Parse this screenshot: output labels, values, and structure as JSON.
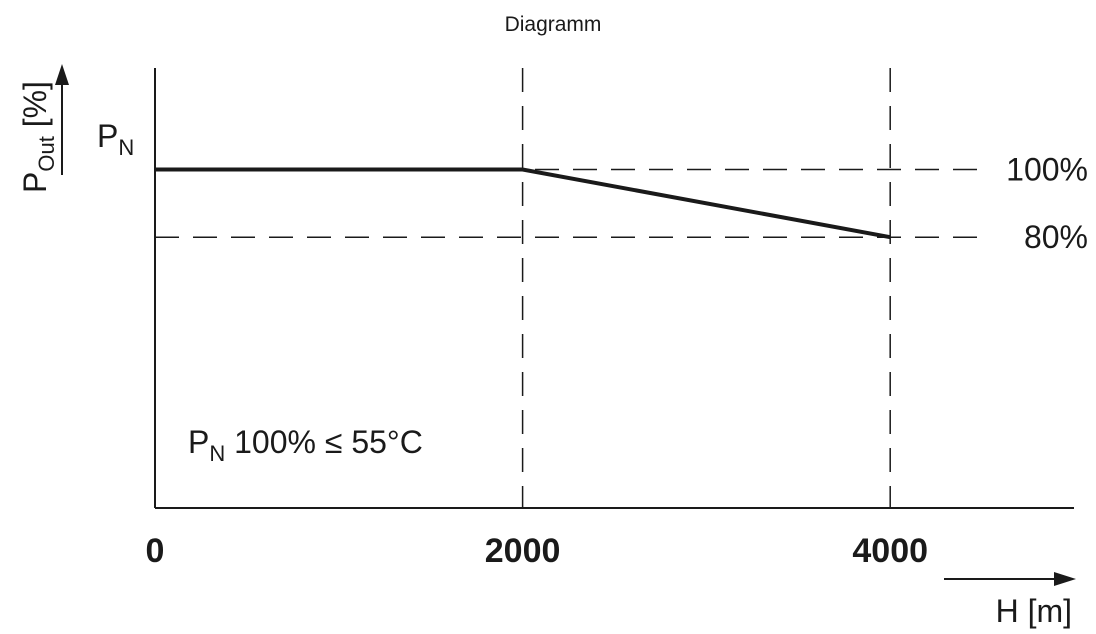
{
  "chart_data": {
    "type": "line",
    "title": "Diagramm",
    "ylabel": {
      "main": "P",
      "sub": "Out",
      "unit": " [%]"
    },
    "xlabel": "H [m]",
    "x_ticks": [
      {
        "value": 0,
        "label": "0"
      },
      {
        "value": 2000,
        "label": "2000"
      },
      {
        "value": 4000,
        "label": "4000"
      }
    ],
    "xlim": [
      0,
      5000
    ],
    "ylim": [
      0,
      130
    ],
    "pn_label": {
      "main": "P",
      "sub": "N"
    },
    "y_reference_lines": [
      {
        "value": 100,
        "label": "100%"
      },
      {
        "value": 80,
        "label": "80%"
      }
    ],
    "x_reference_lines": [
      2000,
      4000
    ],
    "series": [
      {
        "x": [
          0,
          2000,
          4000
        ],
        "y": [
          100,
          100,
          80
        ]
      }
    ],
    "annotation": {
      "main": "P",
      "sub": "N",
      "rest": " 100% ≤ 55°C"
    },
    "line_color": "#1a1a1a"
  }
}
